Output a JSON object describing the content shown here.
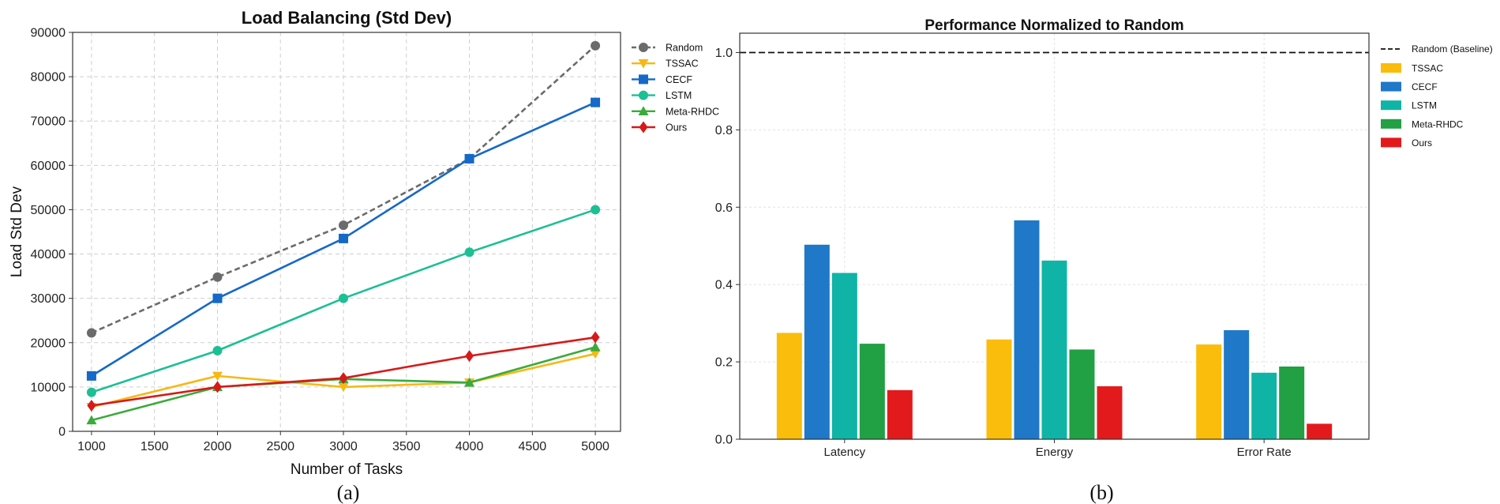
{
  "chart_data": [
    {
      "type": "line",
      "title": "Load Balancing (Std Dev)",
      "xlabel": "Number of Tasks",
      "ylabel": "Load Std Dev",
      "caption": "(a)",
      "x": [
        1000,
        2000,
        3000,
        4000,
        5000
      ],
      "xlim": [
        850,
        5200
      ],
      "ylim": [
        0,
        90000
      ],
      "xticks": [
        1000,
        1500,
        2000,
        2500,
        3000,
        3500,
        4000,
        4500,
        5000
      ],
      "yticks": [
        0,
        10000,
        20000,
        30000,
        40000,
        50000,
        60000,
        70000,
        80000,
        90000
      ],
      "grid": true,
      "legend_position": "right",
      "series": [
        {
          "name": "Random",
          "values": [
            22200,
            34800,
            46500,
            61500,
            87000
          ],
          "color": "#6b6b6b",
          "marker": "circle",
          "dashed": true
        },
        {
          "name": "TSSAC",
          "values": [
            5500,
            12500,
            10000,
            11000,
            17500
          ],
          "color": "#f5b916",
          "marker": "triangle-down",
          "dashed": false
        },
        {
          "name": "CECF",
          "values": [
            12500,
            30000,
            43500,
            61500,
            74200
          ],
          "color": "#1569c7",
          "marker": "square",
          "dashed": false
        },
        {
          "name": "LSTM",
          "values": [
            8800,
            18200,
            30000,
            40400,
            50000
          ],
          "color": "#1dbf94",
          "marker": "circle",
          "dashed": false
        },
        {
          "name": "Meta-RHDC",
          "values": [
            2500,
            10000,
            11800,
            11000,
            19000
          ],
          "color": "#3aab3a",
          "marker": "triangle-up",
          "dashed": false
        },
        {
          "name": "Ours",
          "values": [
            5800,
            10000,
            12000,
            17000,
            21200
          ],
          "color": "#d61a1a",
          "marker": "diamond",
          "dashed": false
        }
      ]
    },
    {
      "type": "bar",
      "title": "Performance Normalized to Random",
      "caption": "(b)",
      "categories": [
        "Latency",
        "Energy",
        "Error Rate"
      ],
      "ylim": [
        0,
        1.05
      ],
      "yticks": [
        0.0,
        0.2,
        0.4,
        0.6,
        0.8,
        1.0
      ],
      "ytick_labels": [
        "0.0",
        "0.2",
        "0.4",
        "0.6",
        "0.8",
        "1.0"
      ],
      "grid": true,
      "legend_position": "right",
      "baseline": {
        "name": "Random (Baseline)",
        "value": 1.0,
        "color": "#111111"
      },
      "series": [
        {
          "name": "TSSAC",
          "values": [
            0.275,
            0.258,
            0.245
          ],
          "color": "#fbbd0b"
        },
        {
          "name": "CECF",
          "values": [
            0.503,
            0.566,
            0.282
          ],
          "color": "#1f78c8"
        },
        {
          "name": "LSTM",
          "values": [
            0.43,
            0.462,
            0.172
          ],
          "color": "#0fb4a6"
        },
        {
          "name": "Meta-RHDC",
          "values": [
            0.247,
            0.232,
            0.188
          ],
          "color": "#21a044"
        },
        {
          "name": "Ours",
          "values": [
            0.127,
            0.137,
            0.04
          ],
          "color": "#e31a1c"
        }
      ]
    }
  ]
}
